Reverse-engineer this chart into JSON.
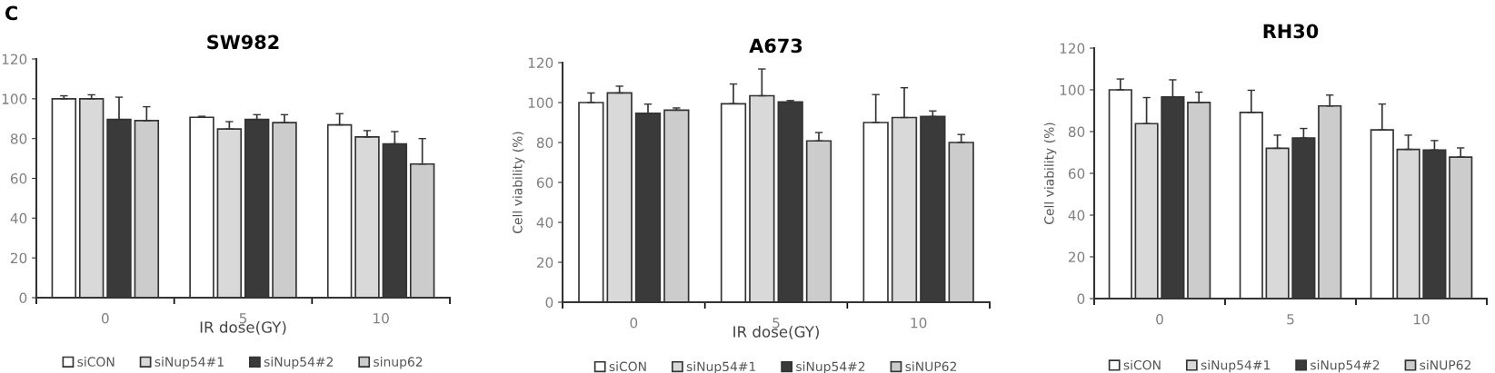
{
  "chart_data": [
    {
      "type": "bar",
      "title": "SW982",
      "xlabel": "IR dose(GY)",
      "annotations": [
        "C"
      ],
      "categories": [
        "0",
        "5",
        "10"
      ],
      "ylim": [
        0,
        120
      ],
      "yticks": [
        0,
        20,
        40,
        60,
        80,
        100,
        120
      ],
      "grid": false,
      "legend": "bottom",
      "series": [
        {
          "name": "siCON",
          "color": "#ffffff",
          "values": [
            100,
            90.7,
            86.9
          ],
          "errors": [
            [
              100,
              101.5
            ],
            [
              90.7,
              91.2
            ],
            [
              86.9,
              92.5
            ]
          ]
        },
        {
          "name": "siNup54#1",
          "color": "#d9d9d9",
          "values": [
            100,
            84.8,
            80.8
          ],
          "errors": [
            [
              100,
              102
            ],
            [
              84.8,
              88.5
            ],
            [
              80.8,
              84
            ]
          ]
        },
        {
          "name": "siNup54#2",
          "color": "#3a3a3a",
          "values": [
            89.6,
            89.6,
            77.3
          ],
          "errors": [
            [
              89.6,
              100.8
            ],
            [
              89.6,
              92
            ],
            [
              77.3,
              83.5
            ]
          ]
        },
        {
          "name": "sinup62",
          "color": "#cccccc",
          "values": [
            89,
            88,
            67.2
          ],
          "errors": [
            [
              89,
              96
            ],
            [
              88,
              92
            ],
            [
              67.2,
              80
            ]
          ]
        }
      ]
    },
    {
      "type": "bar",
      "title": "A673",
      "xlabel": "IR dose(GY)",
      "ylabel": "Cell viability (%)",
      "categories": [
        "0",
        "5",
        "10"
      ],
      "ylim": [
        0,
        120
      ],
      "yticks": [
        0,
        20,
        40,
        60,
        80,
        100,
        120
      ],
      "grid": false,
      "legend": "bottom",
      "series": [
        {
          "name": "siCON",
          "color": "#ffffff",
          "values": [
            100,
            99.4,
            90
          ],
          "errors": [
            [
              100,
              104.8
            ],
            [
              99.4,
              109.3
            ],
            [
              90,
              104
            ]
          ]
        },
        {
          "name": "siNup54#1",
          "color": "#d9d9d9",
          "values": [
            104.8,
            103.4,
            92.5
          ],
          "errors": [
            [
              104.8,
              108.2
            ],
            [
              103.4,
              116.8
            ],
            [
              92.5,
              107.4
            ]
          ]
        },
        {
          "name": "siNup54#2",
          "color": "#3a3a3a",
          "values": [
            94.6,
            100.3,
            93
          ],
          "errors": [
            [
              94.6,
              99.2
            ],
            [
              100.3,
              101
            ],
            [
              93,
              95.8
            ]
          ]
        },
        {
          "name": "siNUP62",
          "color": "#cccccc",
          "values": [
            96.2,
            80.8,
            80
          ],
          "errors": [
            [
              96.2,
              97.3
            ],
            [
              80.8,
              85
            ],
            [
              80,
              84
            ]
          ]
        }
      ]
    },
    {
      "type": "bar",
      "title": "RH30",
      "ylabel": "Cell viability (%)",
      "categories": [
        "0",
        "5",
        "10"
      ],
      "ylim": [
        0,
        120
      ],
      "yticks": [
        0,
        20,
        40,
        60,
        80,
        100,
        120
      ],
      "grid": false,
      "legend": "bottom",
      "series": [
        {
          "name": "siCON",
          "color": "#ffffff",
          "values": [
            100,
            89.2,
            80.8
          ],
          "errors": [
            [
              100,
              105.2
            ],
            [
              89.2,
              99.8
            ],
            [
              80.8,
              93.2
            ]
          ]
        },
        {
          "name": "siNup54#1",
          "color": "#d9d9d9",
          "values": [
            83.8,
            72,
            71.5
          ],
          "errors": [
            [
              83.8,
              96.3
            ],
            [
              72,
              78.3
            ],
            [
              71.5,
              78.3
            ]
          ]
        },
        {
          "name": "siNup54#2",
          "color": "#3a3a3a",
          "values": [
            96.6,
            76.9,
            71.2
          ],
          "errors": [
            [
              96.6,
              104.8
            ],
            [
              76.9,
              81.5
            ],
            [
              71.2,
              75.7
            ]
          ]
        },
        {
          "name": "siNUP62",
          "color": "#cccccc",
          "values": [
            94,
            92.3,
            67.8
          ],
          "errors": [
            [
              94,
              98.9
            ],
            [
              92.3,
              97.5
            ],
            [
              67.8,
              72.2
            ]
          ]
        }
      ]
    }
  ]
}
